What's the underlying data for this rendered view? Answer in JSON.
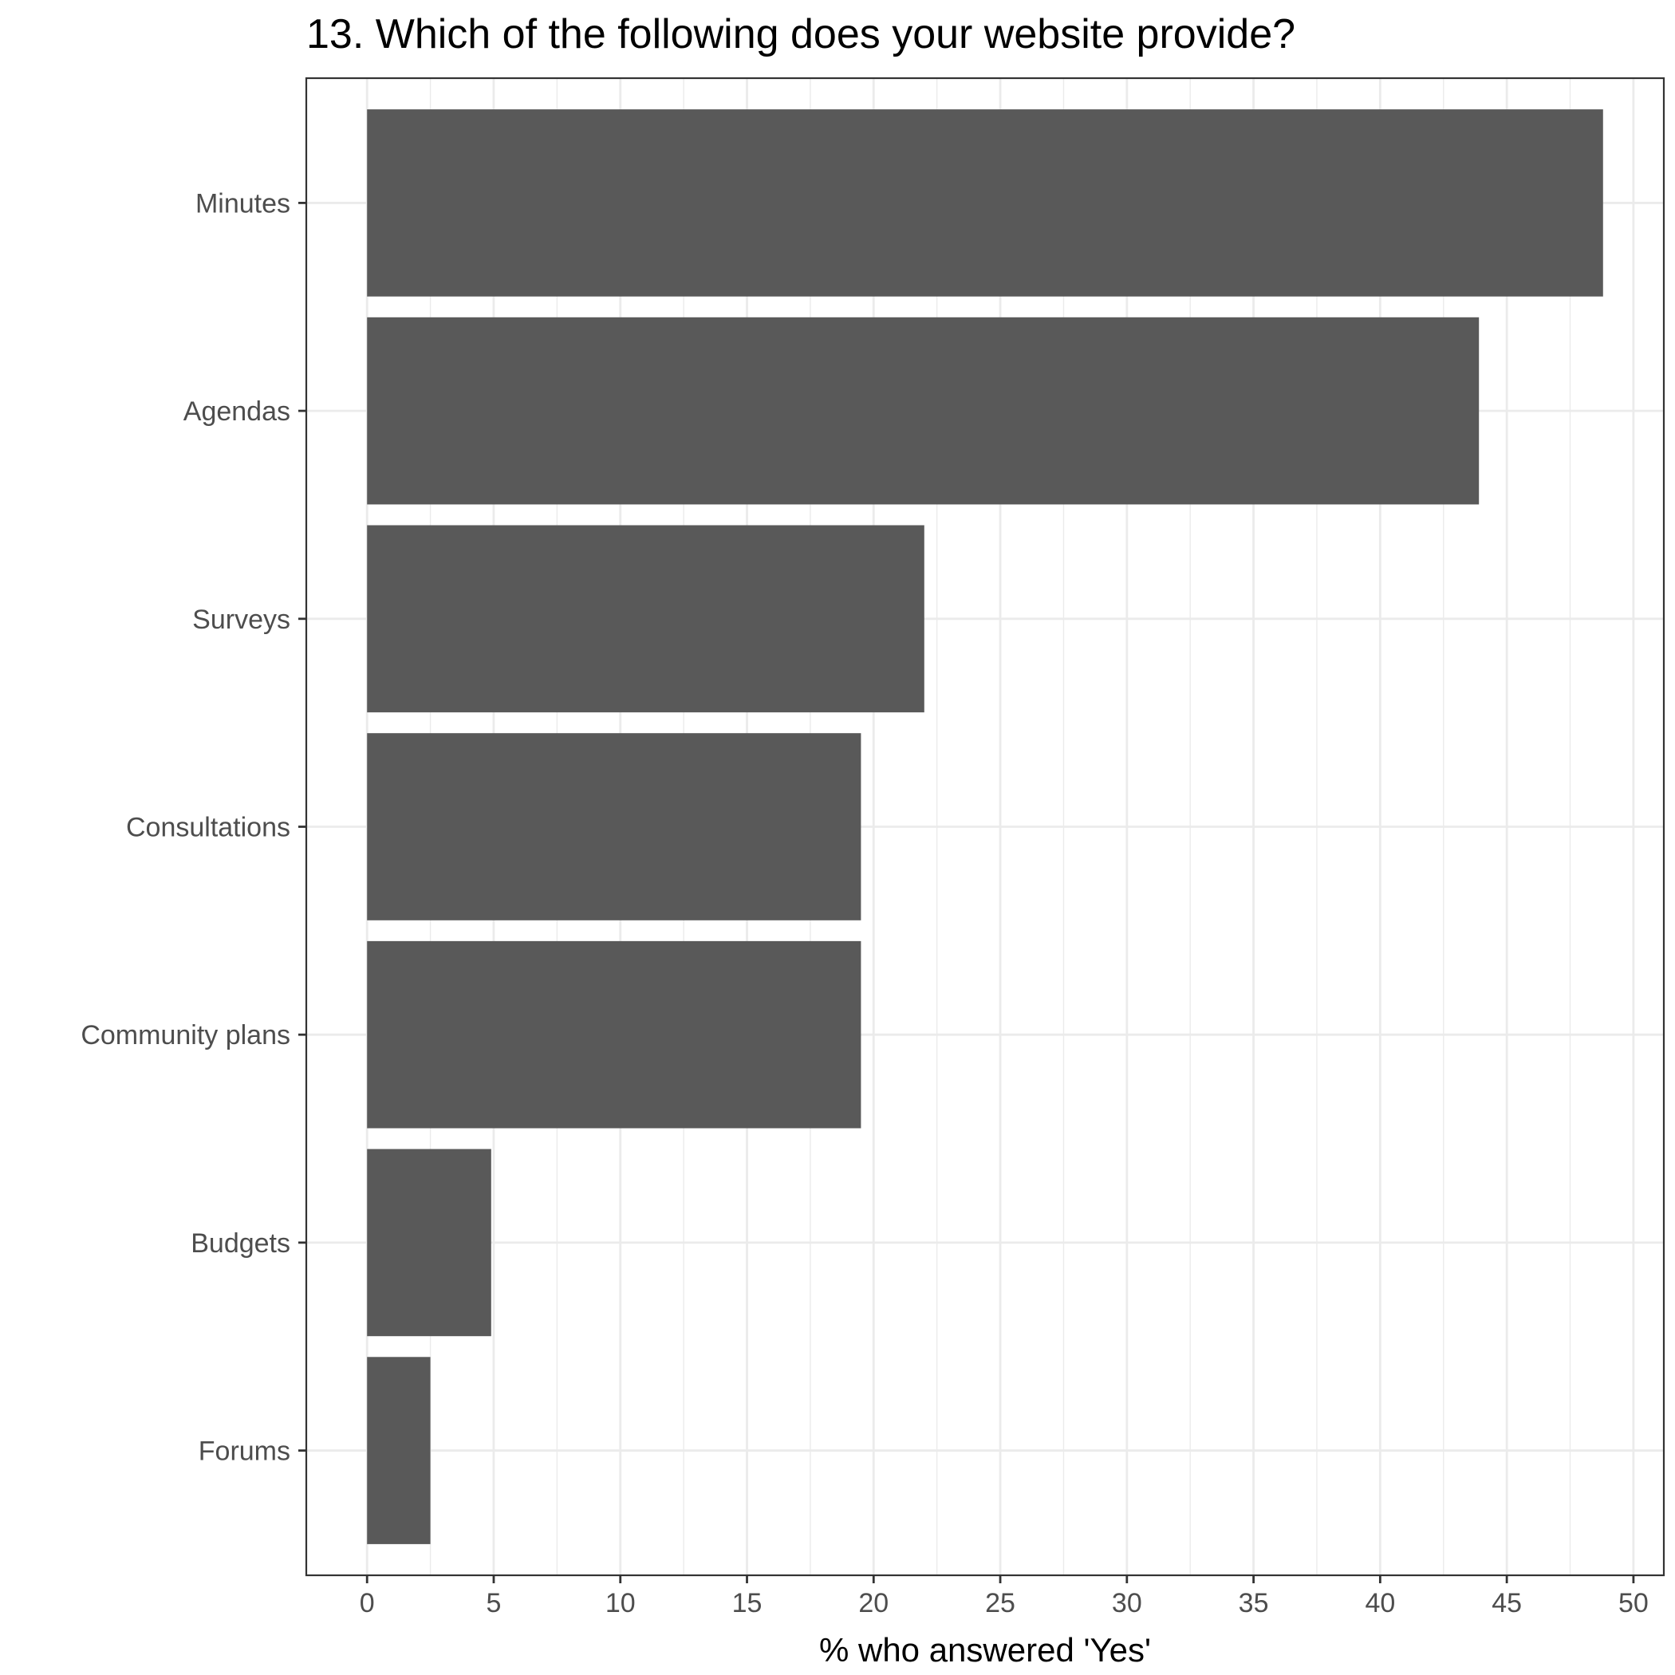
{
  "chart_data": {
    "type": "bar",
    "orientation": "horizontal",
    "title": "13. Which of the following does your website provide?",
    "xlabel": "% who answered 'Yes'",
    "ylabel": "",
    "categories": [
      "Minutes",
      "Agendas",
      "Surveys",
      "Consultations",
      "Community plans",
      "Budgets",
      "Forums"
    ],
    "values": [
      48.8,
      43.9,
      22.0,
      19.5,
      19.5,
      4.9,
      2.5
    ],
    "xlim": [
      -2.4,
      51.2
    ],
    "xticks": [
      "0",
      "5",
      "10",
      "15",
      "20",
      "25",
      "30",
      "35",
      "40",
      "45",
      "50"
    ],
    "grid": true,
    "bar_color": "#595959",
    "grid_color": "#ebebeb",
    "panel_border_color": "#333333",
    "axis_text_color": "#4d4d4d"
  }
}
